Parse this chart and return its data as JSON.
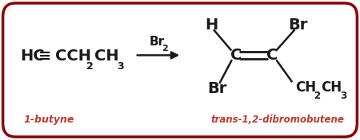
{
  "bg_color": "#ffffff",
  "border_color": "#8b0000",
  "border_linewidth": 2.5,
  "reactant_label": "1-butyne",
  "product_label": "trans-1,2-dibromobutene",
  "label_color": "#c0392b",
  "text_color": "#1a1a1a",
  "figsize": [
    4.5,
    1.76
  ],
  "dpi": 100,
  "xlim": [
    0,
    10
  ],
  "ylim": [
    0,
    3.6
  ]
}
